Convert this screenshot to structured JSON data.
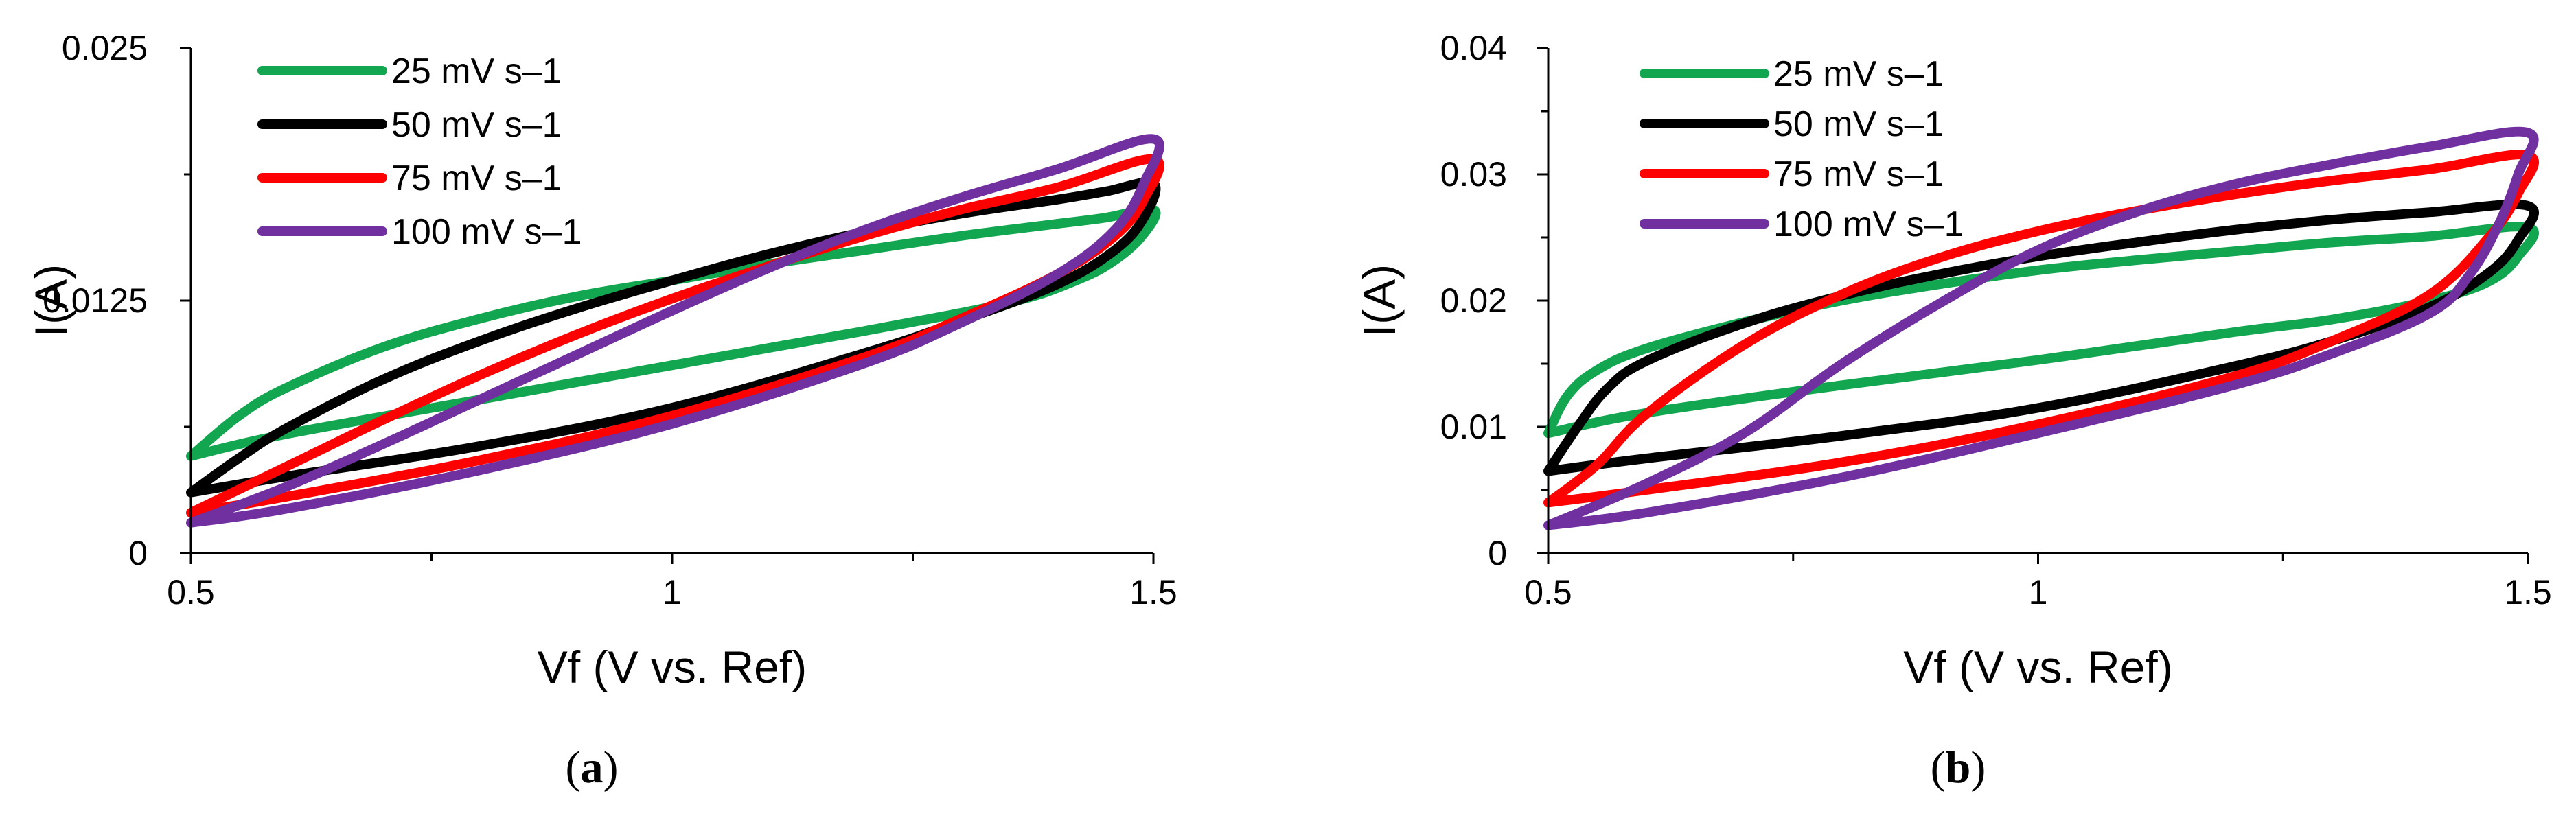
{
  "chart_data": [
    {
      "type": "line",
      "panel_label": "a",
      "xlabel": "Vf (V vs. Ref)",
      "ylabel": "I(A)",
      "xlim": [
        0.5,
        1.5
      ],
      "ylim": [
        0,
        0.025
      ],
      "x_ticks": [
        "0.5",
        "1",
        "1.5"
      ],
      "y_ticks": [
        "0",
        "0.0125",
        "0.025"
      ],
      "legend_position": "top-left",
      "series": [
        {
          "name": "25 mV s–1",
          "color": "#12a650",
          "points": [
            [
              0.5,
              0.0048
            ],
            [
              0.55,
              0.0068
            ],
            [
              0.6,
              0.0082
            ],
            [
              0.7,
              0.0102
            ],
            [
              0.8,
              0.0116
            ],
            [
              0.9,
              0.0127
            ],
            [
              1.0,
              0.0135
            ],
            [
              1.1,
              0.0143
            ],
            [
              1.2,
              0.015
            ],
            [
              1.3,
              0.0157
            ],
            [
              1.4,
              0.0163
            ],
            [
              1.45,
              0.0166
            ],
            [
              1.5,
              0.017
            ],
            [
              1.49,
              0.0158
            ],
            [
              1.46,
              0.0145
            ],
            [
              1.42,
              0.0135
            ],
            [
              1.35,
              0.0124
            ],
            [
              1.2,
              0.011
            ],
            [
              1.0,
              0.0093
            ],
            [
              0.8,
              0.0076
            ],
            [
              0.6,
              0.0059
            ],
            [
              0.5,
              0.0048
            ]
          ]
        },
        {
          "name": "50 mV s–1",
          "color": "#000000",
          "points": [
            [
              0.5,
              0.003
            ],
            [
              0.55,
              0.0047
            ],
            [
              0.6,
              0.0062
            ],
            [
              0.7,
              0.0086
            ],
            [
              0.8,
              0.0105
            ],
            [
              0.9,
              0.0121
            ],
            [
              1.0,
              0.0135
            ],
            [
              1.1,
              0.0148
            ],
            [
              1.2,
              0.0159
            ],
            [
              1.3,
              0.0168
            ],
            [
              1.4,
              0.0175
            ],
            [
              1.45,
              0.0179
            ],
            [
              1.5,
              0.0183
            ],
            [
              1.49,
              0.0166
            ],
            [
              1.46,
              0.015
            ],
            [
              1.4,
              0.0133
            ],
            [
              1.3,
              0.0115
            ],
            [
              1.2,
              0.0099
            ],
            [
              1.0,
              0.0072
            ],
            [
              0.8,
              0.0053
            ],
            [
              0.6,
              0.0038
            ],
            [
              0.5,
              0.003
            ]
          ]
        },
        {
          "name": "75 mV s–1",
          "color": "#ff0000",
          "points": [
            [
              0.5,
              0.002
            ],
            [
              0.6,
              0.0043
            ],
            [
              0.7,
              0.0066
            ],
            [
              0.8,
              0.0088
            ],
            [
              0.9,
              0.0108
            ],
            [
              1.0,
              0.0126
            ],
            [
              1.1,
              0.0142
            ],
            [
              1.2,
              0.0157
            ],
            [
              1.3,
              0.017
            ],
            [
              1.4,
              0.0181
            ],
            [
              1.5,
              0.0195
            ],
            [
              1.49,
              0.0175
            ],
            [
              1.46,
              0.0157
            ],
            [
              1.4,
              0.0138
            ],
            [
              1.3,
              0.0116
            ],
            [
              1.2,
              0.0097
            ],
            [
              1.0,
              0.0068
            ],
            [
              0.8,
              0.0046
            ],
            [
              0.6,
              0.0028
            ],
            [
              0.5,
              0.002
            ]
          ]
        },
        {
          "name": "100 mV s–1",
          "color": "#7030a0",
          "points": [
            [
              0.5,
              0.0015
            ],
            [
              0.6,
              0.0033
            ],
            [
              0.7,
              0.0054
            ],
            [
              0.8,
              0.0076
            ],
            [
              0.9,
              0.0098
            ],
            [
              1.0,
              0.012
            ],
            [
              1.1,
              0.0141
            ],
            [
              1.2,
              0.016
            ],
            [
              1.3,
              0.0176
            ],
            [
              1.4,
              0.019
            ],
            [
              1.5,
              0.0205
            ],
            [
              1.49,
              0.0183
            ],
            [
              1.46,
              0.016
            ],
            [
              1.4,
              0.0138
            ],
            [
              1.3,
              0.0114
            ],
            [
              1.2,
              0.0094
            ],
            [
              1.0,
              0.0064
            ],
            [
              0.8,
              0.0041
            ],
            [
              0.6,
              0.0022
            ],
            [
              0.5,
              0.0015
            ]
          ]
        }
      ]
    },
    {
      "type": "line",
      "panel_label": "b",
      "xlabel": "Vf (V vs. Ref)",
      "ylabel": "I(A)",
      "xlim": [
        0.5,
        1.5
      ],
      "ylim": [
        0,
        0.04
      ],
      "x_ticks": [
        "0.5",
        "1",
        "1.5"
      ],
      "y_ticks": [
        "0",
        "0.01",
        "0.02",
        "0.03",
        "0.04"
      ],
      "legend_position": "top-left",
      "series": [
        {
          "name": "25 mV s–1",
          "color": "#12a650",
          "points": [
            [
              0.5,
              0.0095
            ],
            [
              0.52,
              0.0125
            ],
            [
              0.55,
              0.0145
            ],
            [
              0.6,
              0.0162
            ],
            [
              0.7,
              0.0183
            ],
            [
              0.8,
              0.02
            ],
            [
              0.9,
              0.0213
            ],
            [
              1.0,
              0.0224
            ],
            [
              1.1,
              0.0232
            ],
            [
              1.2,
              0.0239
            ],
            [
              1.3,
              0.0246
            ],
            [
              1.4,
              0.0251
            ],
            [
              1.5,
              0.0258
            ],
            [
              1.49,
              0.0235
            ],
            [
              1.46,
              0.0215
            ],
            [
              1.4,
              0.02
            ],
            [
              1.3,
              0.0185
            ],
            [
              1.2,
              0.0175
            ],
            [
              1.0,
              0.0153
            ],
            [
              0.8,
              0.0133
            ],
            [
              0.6,
              0.0111
            ],
            [
              0.5,
              0.0095
            ]
          ]
        },
        {
          "name": "50 mV s–1",
          "color": "#000000",
          "points": [
            [
              0.5,
              0.0065
            ],
            [
              0.53,
              0.01
            ],
            [
              0.56,
              0.013
            ],
            [
              0.6,
              0.0152
            ],
            [
              0.7,
              0.0182
            ],
            [
              0.8,
              0.0204
            ],
            [
              0.9,
              0.0221
            ],
            [
              1.0,
              0.0235
            ],
            [
              1.1,
              0.0246
            ],
            [
              1.2,
              0.0256
            ],
            [
              1.3,
              0.0264
            ],
            [
              1.4,
              0.027
            ],
            [
              1.5,
              0.0275
            ],
            [
              1.49,
              0.0248
            ],
            [
              1.46,
              0.0222
            ],
            [
              1.4,
              0.0195
            ],
            [
              1.3,
              0.0168
            ],
            [
              1.2,
              0.0148
            ],
            [
              1.0,
              0.0115
            ],
            [
              0.8,
              0.0093
            ],
            [
              0.6,
              0.0075
            ],
            [
              0.5,
              0.0065
            ]
          ]
        },
        {
          "name": "75 mV s–1",
          "color": "#ff0000",
          "points": [
            [
              0.5,
              0.004
            ],
            [
              0.55,
              0.007
            ],
            [
              0.6,
              0.011
            ],
            [
              0.7,
              0.0165
            ],
            [
              0.8,
              0.0205
            ],
            [
              0.9,
              0.0234
            ],
            [
              1.0,
              0.0255
            ],
            [
              1.1,
              0.0271
            ],
            [
              1.2,
              0.0284
            ],
            [
              1.3,
              0.0295
            ],
            [
              1.4,
              0.0304
            ],
            [
              1.5,
              0.0315
            ],
            [
              1.49,
              0.0285
            ],
            [
              1.46,
              0.025
            ],
            [
              1.4,
              0.0205
            ],
            [
              1.3,
              0.0168
            ],
            [
              1.2,
              0.014
            ],
            [
              1.0,
              0.0102
            ],
            [
              0.8,
              0.0072
            ],
            [
              0.6,
              0.005
            ],
            [
              0.5,
              0.004
            ]
          ]
        },
        {
          "name": "100 mV s–1",
          "color": "#7030a0",
          "points": [
            [
              0.5,
              0.0022
            ],
            [
              0.6,
              0.0055
            ],
            [
              0.7,
              0.0095
            ],
            [
              0.8,
              0.015
            ],
            [
              0.9,
              0.0198
            ],
            [
              1.0,
              0.024
            ],
            [
              1.1,
              0.027
            ],
            [
              1.2,
              0.0292
            ],
            [
              1.3,
              0.0308
            ],
            [
              1.4,
              0.0322
            ],
            [
              1.5,
              0.0333
            ],
            [
              1.49,
              0.03
            ],
            [
              1.47,
              0.026
            ],
            [
              1.44,
              0.022
            ],
            [
              1.4,
              0.019
            ],
            [
              1.3,
              0.0158
            ],
            [
              1.2,
              0.0133
            ],
            [
              1.0,
              0.0095
            ],
            [
              0.8,
              0.006
            ],
            [
              0.6,
              0.0032
            ],
            [
              0.5,
              0.0022
            ]
          ]
        }
      ]
    }
  ]
}
